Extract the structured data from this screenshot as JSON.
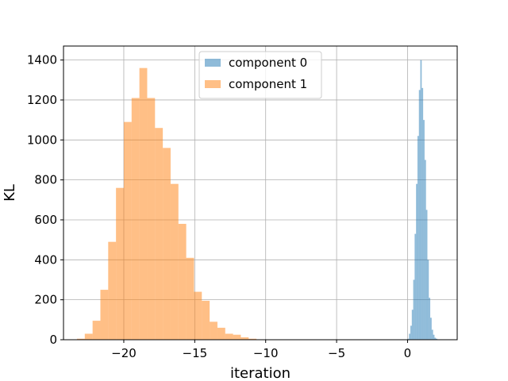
{
  "chart_data": {
    "type": "bar",
    "title": "",
    "xlabel": "iteration",
    "ylabel": "KL",
    "xlim": [
      -24.25,
      3.5
    ],
    "ylim": [
      0,
      1470
    ],
    "grid": true,
    "legend_position": "top-center",
    "xticks": [
      -20,
      -15,
      -10,
      -5,
      0
    ],
    "xtick_labels": [
      "−20",
      "−15",
      "−10",
      "−5",
      "0"
    ],
    "yticks": [
      0,
      200,
      400,
      600,
      800,
      1000,
      1200,
      1400
    ],
    "ytick_labels": [
      "0",
      "200",
      "400",
      "600",
      "800",
      "1000",
      "1200",
      "1400"
    ],
    "series": [
      {
        "name": "component 0",
        "color": "#1f77b4",
        "opacity": 0.5,
        "bin_edges": [
          0.0,
          0.1,
          0.2,
          0.3,
          0.4,
          0.5,
          0.6,
          0.7,
          0.8,
          0.9,
          1.0,
          1.1,
          1.2,
          1.3,
          1.4,
          1.5,
          1.6,
          1.7,
          1.8,
          1.9,
          2.0,
          2.1,
          2.2,
          2.3,
          2.4,
          2.5,
          2.6
        ],
        "counts": [
          5,
          30,
          70,
          150,
          300,
          530,
          780,
          1020,
          1250,
          1400,
          1260,
          1100,
          900,
          650,
          400,
          210,
          110,
          50,
          25,
          10,
          5,
          2,
          1,
          0,
          0,
          0
        ]
      },
      {
        "name": "component 1",
        "color": "#ff7f0e",
        "opacity": 0.5,
        "bin_edges": [
          -23.3,
          -22.75,
          -22.2,
          -21.65,
          -21.1,
          -20.55,
          -20.0,
          -19.45,
          -18.9,
          -18.35,
          -17.8,
          -17.25,
          -16.7,
          -16.15,
          -15.6,
          -15.05,
          -14.5,
          -13.95,
          -13.4,
          -12.85,
          -12.3,
          -11.75,
          -11.2,
          -10.65,
          -10.1,
          -9.55,
          -9.0
        ],
        "counts": [
          5,
          30,
          95,
          250,
          490,
          760,
          1090,
          1210,
          1360,
          1210,
          1060,
          960,
          780,
          580,
          410,
          240,
          195,
          90,
          60,
          30,
          25,
          12,
          5,
          2,
          1,
          0
        ]
      }
    ]
  }
}
